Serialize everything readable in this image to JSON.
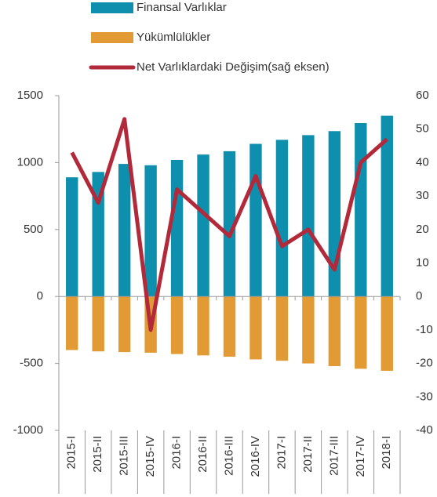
{
  "chart_data": {
    "type": "bar_line",
    "categories": [
      "2015-I",
      "2015-II",
      "2015-III",
      "2015-IV",
      "2016-I",
      "2016-II",
      "2016-III",
      "2016-IV",
      "2017-I",
      "2017-II",
      "2017-III",
      "2017-IV",
      "2018-I"
    ],
    "series": [
      {
        "name": "Finansal Varlıklar",
        "type": "bar",
        "color": "#0e8fae",
        "values": [
          890,
          930,
          990,
          980,
          1020,
          1060,
          1085,
          1140,
          1170,
          1205,
          1235,
          1295,
          1350
        ]
      },
      {
        "name": "Yükümlülükler",
        "type": "bar",
        "color": "#e29a34",
        "values": [
          -400,
          -410,
          -415,
          -420,
          -430,
          -440,
          -450,
          -470,
          -480,
          -500,
          -520,
          -540,
          -555
        ]
      },
      {
        "name": "Net Varlıklardaki Değişim(sağ eksen)",
        "type": "line",
        "axis": "y2",
        "color": "#b2293a",
        "values": [
          43,
          28,
          53,
          -10,
          32,
          25,
          18,
          36,
          15,
          20,
          8,
          40,
          47
        ]
      }
    ],
    "ylim": [
      -1000,
      1500
    ],
    "yticks": [
      -1000,
      -500,
      0,
      500,
      1000,
      1500
    ],
    "y2lim": [
      -40,
      60
    ],
    "y2ticks": [
      -40,
      -30,
      -20,
      -10,
      0,
      10,
      20,
      30,
      40,
      50,
      60
    ],
    "legend": "top"
  }
}
